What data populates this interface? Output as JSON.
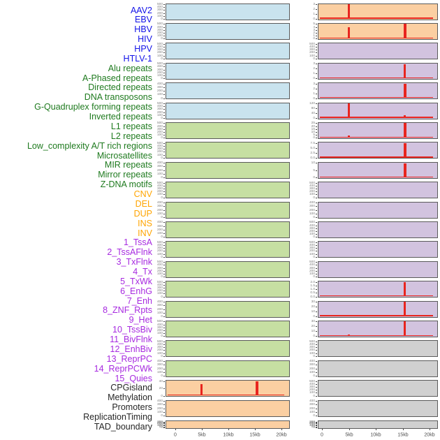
{
  "chart_data": {
    "type": "area",
    "title": "",
    "description": "Grid of 44 mini genomic profile panels (2 columns x 22 rows), x axis 0-20kb; red spikes mark enrichment peaks near 5kb and 15.4kb",
    "x_range_kb": [
      0,
      20
    ],
    "x_ticks": [
      "0",
      "5kb",
      "10kb",
      "15kb",
      "20kb"
    ],
    "x_tick_kb": [
      0,
      5,
      10,
      15,
      20
    ],
    "label_colors": {
      "virus": "#1313e8",
      "repeat": "#1e7a1e",
      "sv": "#ffa502",
      "chromhmm": "#a72ae0",
      "other": "#262626"
    },
    "panel_fills": {
      "blue": "#c9e3ee",
      "green": "#c6dfa2",
      "orange": "#fbcfa2",
      "purple": "#d2c3df",
      "gray": "#d0d0d0"
    },
    "spike_color": "#e8251f",
    "row_labels": [
      {
        "text": "AAV2",
        "group": "virus"
      },
      {
        "text": "EBV",
        "group": "virus"
      },
      {
        "text": "HBV",
        "group": "virus"
      },
      {
        "text": "HIV",
        "group": "virus"
      },
      {
        "text": "HPV",
        "group": "virus"
      },
      {
        "text": "HTLV-1",
        "group": "virus"
      },
      {
        "text": "Alu repeats",
        "group": "repeat"
      },
      {
        "text": "A-Phased repeats",
        "group": "repeat"
      },
      {
        "text": "Directed repeats",
        "group": "repeat"
      },
      {
        "text": "DNA transposons",
        "group": "repeat"
      },
      {
        "text": "G-Quadruplex forming repeats",
        "group": "repeat"
      },
      {
        "text": "Inverted repeats",
        "group": "repeat"
      },
      {
        "text": "L1 repeats",
        "group": "repeat"
      },
      {
        "text": "L2 repeats",
        "group": "repeat"
      },
      {
        "text": "Low_complexity A/T rich regions",
        "group": "repeat"
      },
      {
        "text": "Microsatellites",
        "group": "repeat"
      },
      {
        "text": "MIR repeats",
        "group": "repeat"
      },
      {
        "text": "Mirror repeats",
        "group": "repeat"
      },
      {
        "text": "Z-DNA motifs",
        "group": "repeat"
      },
      {
        "text": "CNV",
        "group": "sv"
      },
      {
        "text": "DEL",
        "group": "sv"
      },
      {
        "text": "DUP",
        "group": "sv"
      },
      {
        "text": "INS",
        "group": "sv"
      },
      {
        "text": "INV",
        "group": "sv"
      },
      {
        "text": "1_TssA",
        "group": "chromhmm"
      },
      {
        "text": "2_TssAFlnk",
        "group": "chromhmm"
      },
      {
        "text": "3_TxFlnk",
        "group": "chromhmm"
      },
      {
        "text": "4_Tx",
        "group": "chromhmm"
      },
      {
        "text": "5_TxWk",
        "group": "chromhmm"
      },
      {
        "text": "6_EnhG",
        "group": "chromhmm"
      },
      {
        "text": "7_Enh",
        "group": "chromhmm"
      },
      {
        "text": "8_ZNF_Rpts",
        "group": "chromhmm"
      },
      {
        "text": "9_Het",
        "group": "chromhmm"
      },
      {
        "text": "10_TssBiv",
        "group": "chromhmm"
      },
      {
        "text": "11_BivFlnk",
        "group": "chromhmm"
      },
      {
        "text": "12_EnhBiv",
        "group": "chromhmm"
      },
      {
        "text": "13_ReprPC",
        "group": "chromhmm"
      },
      {
        "text": "14_ReprPCWk",
        "group": "chromhmm"
      },
      {
        "text": "15_Quies",
        "group": "chromhmm"
      },
      {
        "text": "CPGisland",
        "group": "other"
      },
      {
        "text": "Methylation",
        "group": "other"
      },
      {
        "text": "Promoters",
        "group": "other"
      },
      {
        "text": "ReplicationTiming",
        "group": "other"
      },
      {
        "text": "TAD_boundary",
        "group": "other"
      }
    ],
    "columns": [
      {
        "name": "left",
        "rows": [
          {
            "fill": "blue",
            "yticks": [
              "500",
              "400",
              "300",
              "200",
              "100",
              "0"
            ],
            "spikes": [],
            "baseline": false
          },
          {
            "fill": "blue",
            "yticks": [
              "500",
              "400",
              "300",
              "200",
              "100",
              "0"
            ],
            "spikes": [],
            "baseline": false
          },
          {
            "fill": "blue",
            "yticks": [
              "500",
              "400",
              "300",
              "200",
              "100",
              "0"
            ],
            "spikes": [],
            "baseline": false
          },
          {
            "fill": "blue",
            "yticks": [
              "500",
              "400",
              "300",
              "200",
              "100",
              "0"
            ],
            "spikes": [],
            "baseline": false
          },
          {
            "fill": "blue",
            "yticks": [
              "400",
              "300",
              "200",
              "100",
              "0"
            ],
            "spikes": [],
            "baseline": false
          },
          {
            "fill": "blue",
            "yticks": [
              "500",
              "400",
              "300",
              "200",
              "100",
              "0"
            ],
            "spikes": [],
            "baseline": false
          },
          {
            "fill": "green",
            "yticks": [
              "500",
              "400",
              "300",
              "200",
              "100",
              "0"
            ],
            "spikes": [],
            "baseline": false
          },
          {
            "fill": "green",
            "yticks": [
              "500",
              "400",
              "300",
              "200",
              "100",
              "0"
            ],
            "spikes": [],
            "baseline": false
          },
          {
            "fill": "green",
            "yticks": [
              "400",
              "300",
              "200",
              "100",
              "0"
            ],
            "spikes": [],
            "baseline": false
          },
          {
            "fill": "green",
            "yticks": [
              "500",
              "400",
              "300",
              "200",
              "100",
              "0"
            ],
            "spikes": [],
            "baseline": false
          },
          {
            "fill": "green",
            "yticks": [
              "400",
              "300",
              "200",
              "100",
              "0"
            ],
            "spikes": [],
            "baseline": false
          },
          {
            "fill": "green",
            "yticks": [
              "400",
              "300",
              "200",
              "100",
              "0"
            ],
            "spikes": [],
            "baseline": false
          },
          {
            "fill": "green",
            "yticks": [
              "500",
              "400",
              "300",
              "200",
              "100",
              "0"
            ],
            "spikes": [],
            "baseline": false
          },
          {
            "fill": "green",
            "yticks": [
              "500",
              "400",
              "300",
              "200",
              "100",
              "0"
            ],
            "spikes": [],
            "baseline": false
          },
          {
            "fill": "green",
            "yticks": [
              "500",
              "400",
              "300",
              "200",
              "100",
              "0"
            ],
            "spikes": [],
            "baseline": false
          },
          {
            "fill": "green",
            "yticks": [
              "400",
              "300",
              "200",
              "100",
              "0"
            ],
            "spikes": [],
            "baseline": false
          },
          {
            "fill": "green",
            "yticks": [
              "500",
              "400",
              "300",
              "200",
              "100",
              "0"
            ],
            "spikes": [],
            "baseline": false
          },
          {
            "fill": "green",
            "yticks": [
              "500",
              "400",
              "300",
              "200",
              "100",
              "0"
            ],
            "spikes": [],
            "baseline": false
          },
          {
            "fill": "green",
            "yticks": [
              "400",
              "300",
              "200",
              "100",
              "0"
            ],
            "spikes": [],
            "baseline": false
          },
          {
            "fill": "orange",
            "yticks": [
              "40",
              "20",
              "0"
            ],
            "spikes": [
              {
                "kb": 5,
                "h": 0.78
              },
              {
                "kb": 15.4,
                "h": 1.0,
                "w": 4
              }
            ],
            "baseline": true
          },
          {
            "fill": "orange",
            "yticks": [
              "400",
              "300",
              "200",
              "100",
              "0"
            ],
            "spikes": [],
            "baseline": false
          },
          {
            "fill": "orange",
            "yticks": [
              "300",
              "250",
              "200",
              "150",
              "100",
              "50",
              "0"
            ],
            "spikes": [],
            "baseline": false
          }
        ]
      },
      {
        "name": "right",
        "rows": [
          {
            "fill": "orange",
            "yticks": [
              "3",
              "2",
              "1",
              "0"
            ],
            "spikes": [
              {
                "kb": 5,
                "h": 1.0
              }
            ],
            "baseline": true
          },
          {
            "fill": "orange",
            "yticks": [
              "5",
              "4",
              "3",
              "2",
              "1",
              "0"
            ],
            "spikes": [
              {
                "kb": 5,
                "h": 0.8
              },
              {
                "kb": 15.4,
                "h": 1.0,
                "w": 4
              }
            ],
            "baseline": true
          },
          {
            "fill": "purple",
            "yticks": [
              "500",
              "400",
              "300",
              "200",
              "100",
              "0"
            ],
            "spikes": [],
            "baseline": false
          },
          {
            "fill": "purple",
            "yticks": [
              "3",
              "2",
              "1",
              "0"
            ],
            "spikes": [
              {
                "kb": 15.4,
                "h": 0.97
              }
            ],
            "baseline": true
          },
          {
            "fill": "purple",
            "yticks": [
              "3",
              "2",
              "1",
              "0"
            ],
            "spikes": [
              {
                "kb": 15.4,
                "h": 1.0,
                "w": 4
              }
            ],
            "baseline": true
          },
          {
            "fill": "purple",
            "yticks": [
              "120",
              "80",
              "40",
              "0"
            ],
            "spikes": [
              {
                "kb": 5,
                "h": 1.0
              },
              {
                "kb": 15.4,
                "h": 0.16
              }
            ],
            "baseline": true
          },
          {
            "fill": "purple",
            "yticks": [
              "25",
              "20",
              "15",
              "10",
              "5",
              "0"
            ],
            "spikes": [
              {
                "kb": 5,
                "h": 0.12
              },
              {
                "kb": 15.4,
                "h": 1.0,
                "w": 4
              }
            ],
            "baseline": true
          },
          {
            "fill": "purple",
            "yticks": [
              "7.5",
              "5.0",
              "2.5",
              "0.0"
            ],
            "spikes": [
              {
                "kb": 15.4,
                "h": 1.0,
                "w": 4
              }
            ],
            "baseline": true
          },
          {
            "fill": "purple",
            "yticks": [
              "10",
              "5",
              "0"
            ],
            "spikes": [
              {
                "kb": 15.4,
                "h": 0.97,
                "w": 4
              }
            ],
            "baseline": true
          },
          {
            "fill": "purple",
            "yticks": [
              "500",
              "400",
              "300",
              "200",
              "100",
              "0"
            ],
            "spikes": [],
            "baseline": false
          },
          {
            "fill": "purple",
            "yticks": [
              "400",
              "300",
              "200",
              "100",
              "0"
            ],
            "spikes": [],
            "baseline": false
          },
          {
            "fill": "purple",
            "yticks": [
              "500",
              "400",
              "300",
              "200",
              "100",
              "0"
            ],
            "spikes": [],
            "baseline": false
          },
          {
            "fill": "purple",
            "yticks": [
              "500",
              "400",
              "300",
              "200",
              "100",
              "0"
            ],
            "spikes": [],
            "baseline": false
          },
          {
            "fill": "purple",
            "yticks": [
              "500",
              "400",
              "300",
              "200",
              "100",
              "0"
            ],
            "spikes": [],
            "baseline": false
          },
          {
            "fill": "purple",
            "yticks": [
              "2.0",
              "1.5",
              "1.0",
              "0.5",
              "0.0"
            ],
            "spikes": [
              {
                "kb": 15.4,
                "h": 1.0
              }
            ],
            "baseline": true
          },
          {
            "fill": "purple",
            "yticks": [
              "30",
              "20",
              "10",
              "0"
            ],
            "spikes": [
              {
                "kb": 15.4,
                "h": 1.0
              }
            ],
            "baseline": true
          },
          {
            "fill": "purple",
            "yticks": [
              "30",
              "20",
              "10",
              "0"
            ],
            "spikes": [
              {
                "kb": 5,
                "h": 0.1
              },
              {
                "kb": 15.4,
                "h": 1.0
              }
            ],
            "baseline": true
          },
          {
            "fill": "gray",
            "yticks": [
              "500",
              "400",
              "300",
              "200",
              "100",
              "0"
            ],
            "spikes": [],
            "baseline": false
          },
          {
            "fill": "gray",
            "yticks": [
              "400",
              "300",
              "200",
              "100",
              "0"
            ],
            "spikes": [],
            "baseline": false
          },
          {
            "fill": "gray",
            "yticks": [
              "500",
              "400",
              "300",
              "200",
              "100",
              "0"
            ],
            "spikes": [],
            "baseline": false
          },
          {
            "fill": "gray",
            "yticks": [
              "400",
              "300",
              "200",
              "100",
              "0"
            ],
            "spikes": [],
            "baseline": false
          },
          {
            "fill": "gray",
            "yticks": [
              "300",
              "250",
              "200",
              "150",
              "100",
              "50",
              "0"
            ],
            "spikes": [],
            "baseline": false
          }
        ]
      }
    ]
  }
}
